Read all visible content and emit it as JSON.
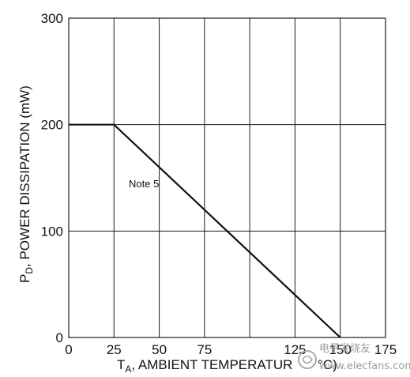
{
  "chart_data": {
    "type": "line",
    "x_ticks": [
      "0",
      "25",
      "50",
      "75",
      "125",
      "150",
      "175"
    ],
    "y_ticks": [
      "0",
      "100",
      "200",
      "300"
    ],
    "x_label": "T",
    "x_label_sub": "A",
    "x_label_rest": ", AMBIENT TEMPERATUR",
    "x_label_unit": "°C)",
    "y_label": "P",
    "y_label_sub": "D",
    "y_label_rest": ", POWER DISSIPATION (mW)",
    "annotation": "Note 5",
    "xlim": [
      0,
      175
    ],
    "ylim": [
      0,
      300
    ],
    "grid": true,
    "series": [
      {
        "x": [
          0,
          25,
          150
        ],
        "y": [
          200,
          200,
          0
        ]
      }
    ]
  },
  "watermark": {
    "text": "电子发烧友",
    "url": "www.elecfans.com"
  }
}
